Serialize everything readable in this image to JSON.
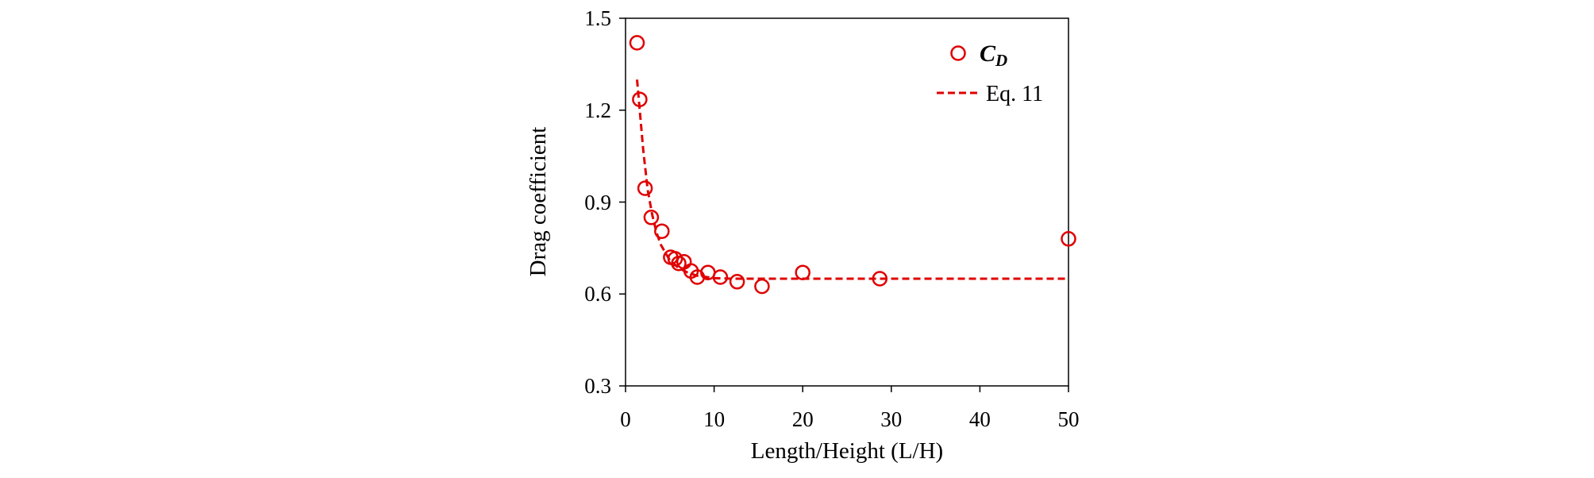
{
  "chart_data": {
    "type": "scatter",
    "xlabel": "Length/Height (L/H)",
    "ylabel": "Drag coefficient",
    "xlim": [
      0,
      50
    ],
    "ylim": [
      0.3,
      1.5
    ],
    "x_ticks": [
      "0",
      "10",
      "20",
      "30",
      "40",
      "50"
    ],
    "y_ticks": [
      "0.3",
      "0.6",
      "0.9",
      "1.2",
      "1.5"
    ],
    "grid": false,
    "legend_position": "top-right",
    "series": [
      {
        "name": "C_D",
        "legend_main": "C",
        "legend_sub": "D",
        "marker": "open-circle",
        "color": "#e00000",
        "points": [
          [
            1.3,
            1.42
          ],
          [
            1.6,
            1.235
          ],
          [
            2.2,
            0.945
          ],
          [
            2.9,
            0.85
          ],
          [
            4.1,
            0.805
          ],
          [
            5.1,
            0.72
          ],
          [
            5.6,
            0.715
          ],
          [
            6.0,
            0.7
          ],
          [
            6.6,
            0.705
          ],
          [
            7.4,
            0.675
          ],
          [
            8.1,
            0.655
          ],
          [
            9.3,
            0.67
          ],
          [
            10.7,
            0.655
          ],
          [
            12.6,
            0.64
          ],
          [
            15.4,
            0.625
          ],
          [
            20.0,
            0.67
          ],
          [
            28.7,
            0.65
          ],
          [
            50.0,
            0.78
          ]
        ]
      },
      {
        "name": "Eq. 11",
        "line_style": "dashed",
        "color": "#e00000",
        "points": [
          [
            1.3,
            1.3
          ],
          [
            1.6,
            1.2
          ],
          [
            2.0,
            1.07
          ],
          [
            2.5,
            0.94
          ],
          [
            3.0,
            0.86
          ],
          [
            3.5,
            0.8
          ],
          [
            4.0,
            0.76
          ],
          [
            5.0,
            0.71
          ],
          [
            6.0,
            0.685
          ],
          [
            7.0,
            0.67
          ],
          [
            8.0,
            0.66
          ],
          [
            10.0,
            0.652
          ],
          [
            12.0,
            0.65
          ],
          [
            20.0,
            0.65
          ],
          [
            50.0,
            0.65
          ]
        ]
      }
    ]
  }
}
